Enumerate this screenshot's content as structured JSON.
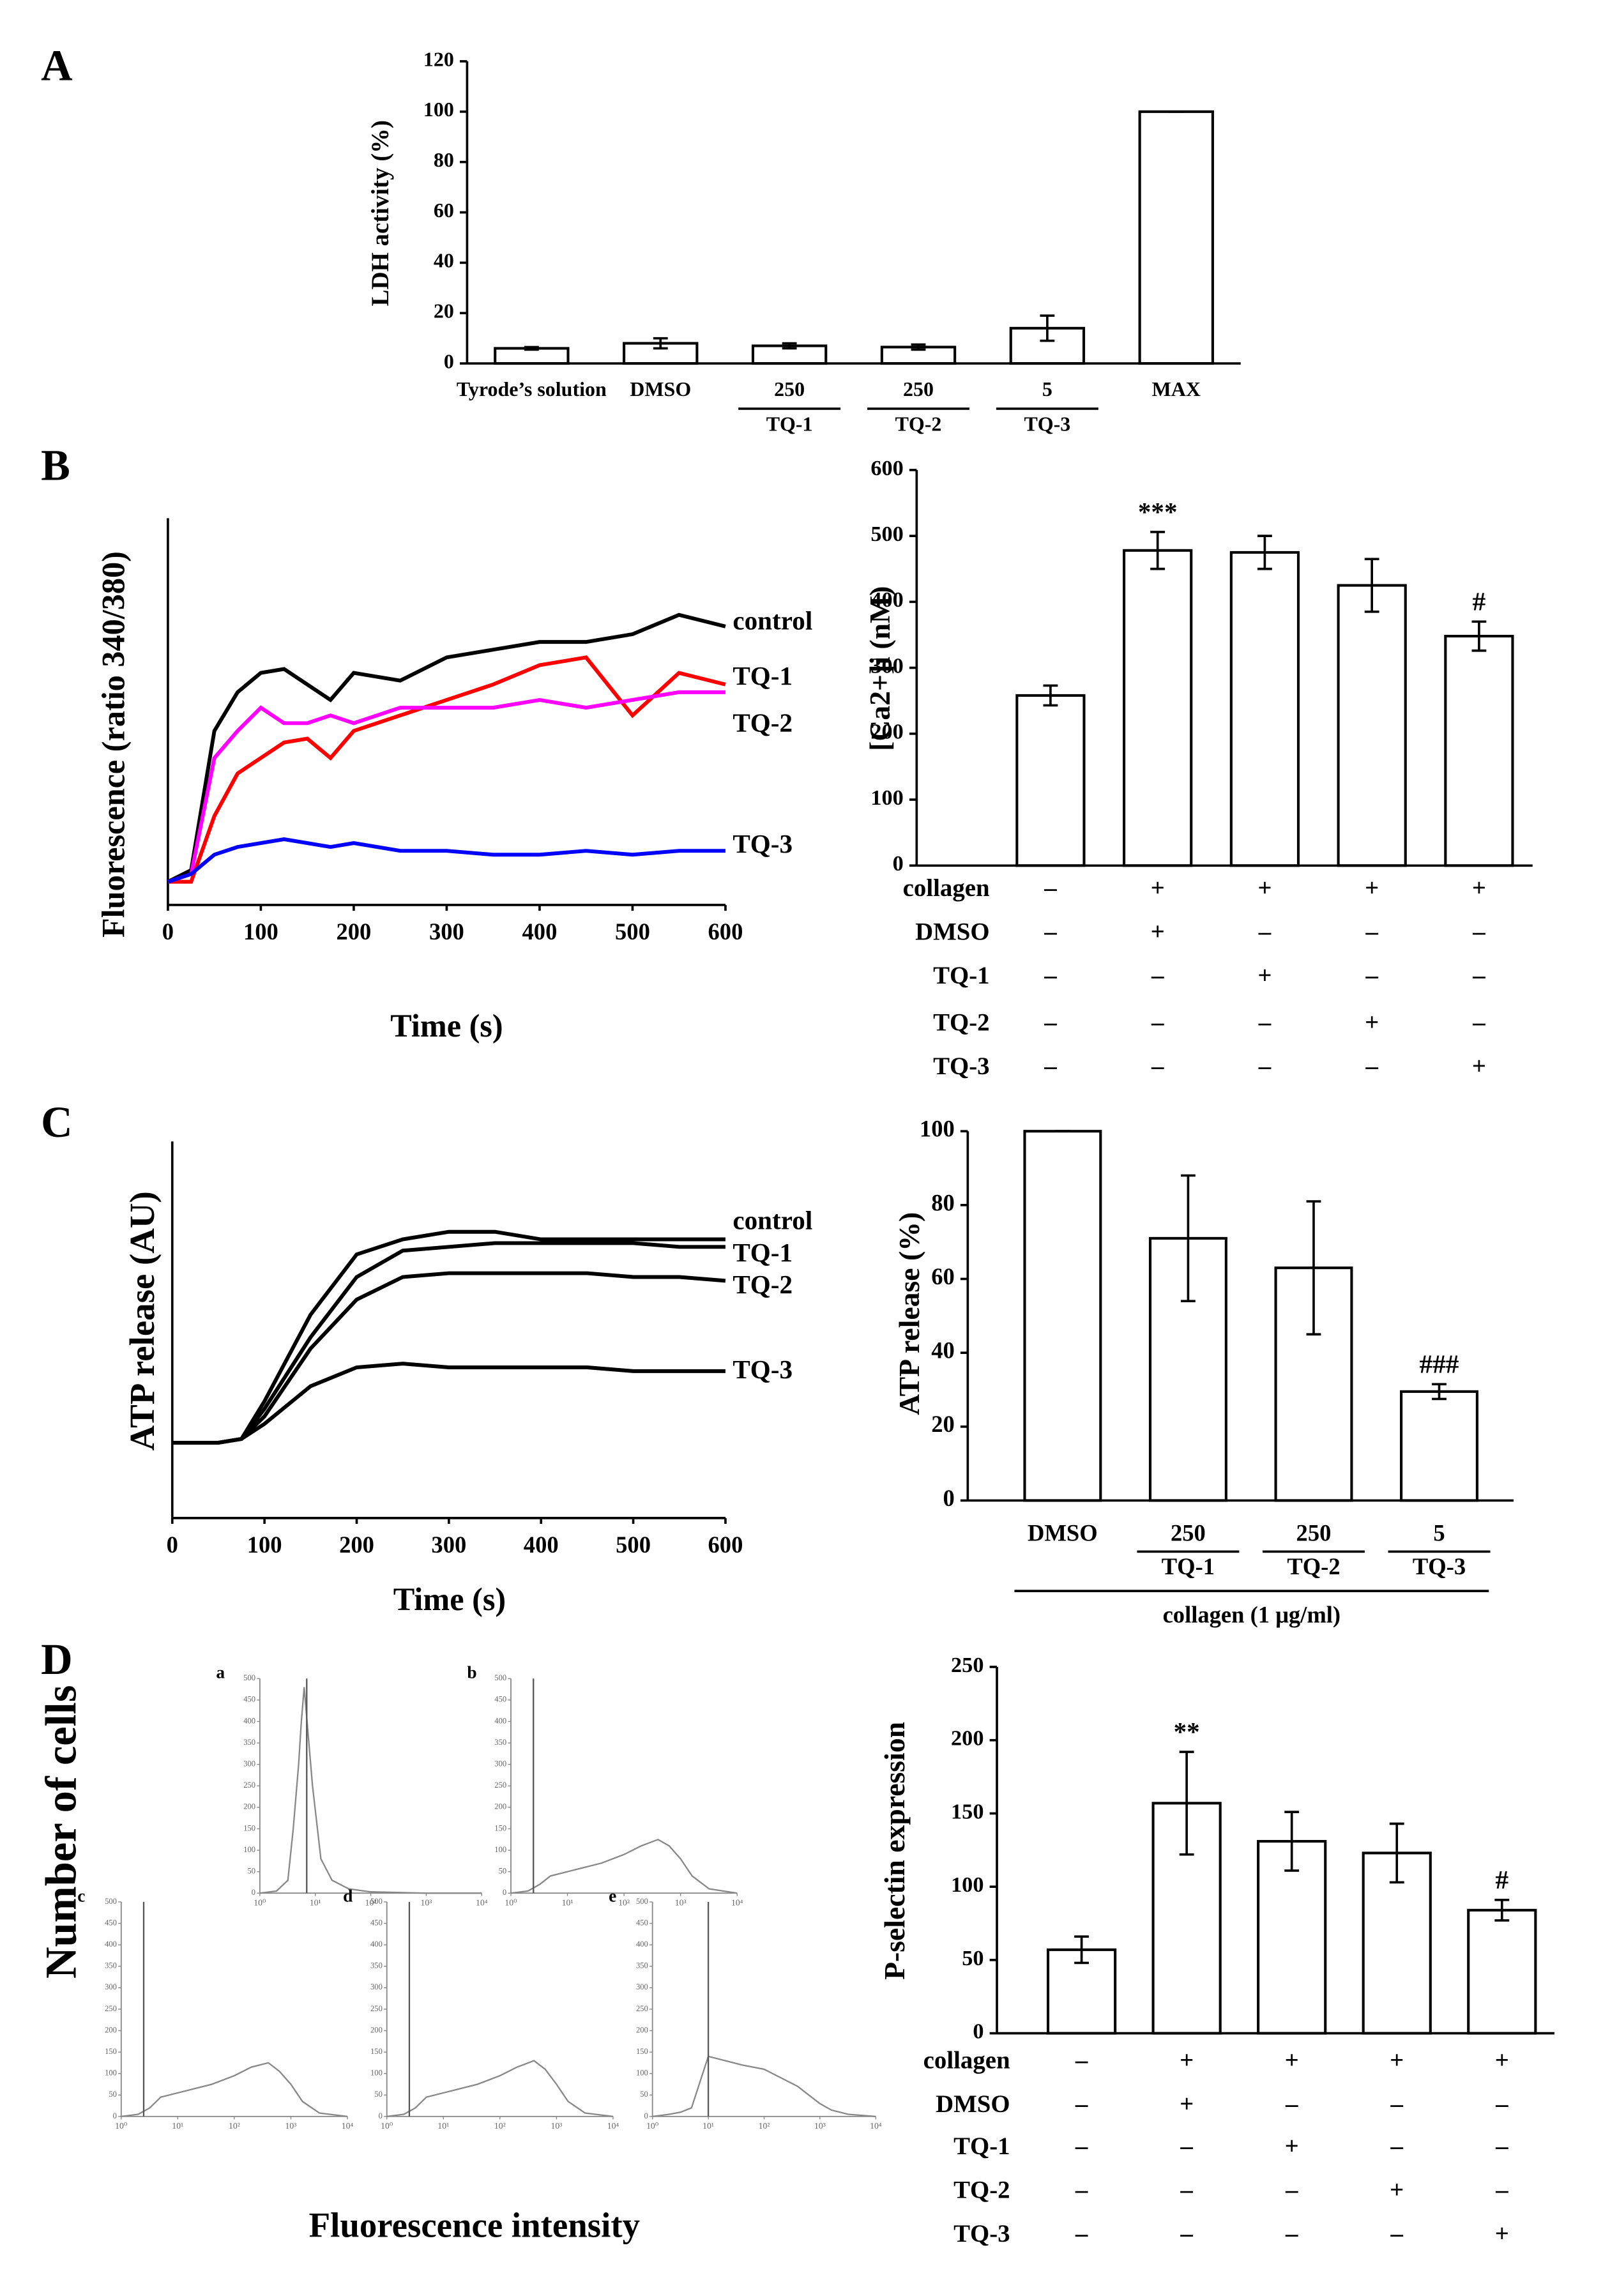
{
  "chart_data": [
    {
      "type": "bar",
      "panel": "A",
      "ylabel": "LDH activity (%)",
      "categories": [
        "Tyrode’s solution",
        "DMSO",
        "250",
        "250",
        "5",
        "MAX"
      ],
      "sublabels": [
        null,
        null,
        "TQ-1",
        "TQ-2",
        "TQ-3",
        null
      ],
      "values": [
        6,
        8,
        7,
        6.5,
        14,
        100
      ],
      "errors": [
        0.5,
        2,
        1,
        1,
        5,
        0
      ],
      "ylim": [
        0,
        120
      ],
      "yticks": [
        0,
        20,
        40,
        60,
        80,
        100,
        120
      ],
      "color": "#ffffff"
    },
    {
      "type": "line",
      "panel": "B",
      "ylabel": "Fluorescence (ratio 340/380)",
      "xlabel": "Time (s)",
      "x": [
        0,
        25,
        50,
        75,
        100,
        125,
        150,
        175,
        200,
        250,
        300,
        350,
        400,
        450,
        500,
        550,
        600
      ],
      "xlim": [
        0,
        600
      ],
      "xticks": [
        0,
        100,
        200,
        300,
        400,
        500,
        600
      ],
      "ylim": [
        0,
        100
      ],
      "series": [
        {
          "name": "control",
          "color": "#000000",
          "values": [
            6,
            9,
            45,
            55,
            60,
            61,
            57,
            53,
            60,
            58,
            64,
            66,
            68,
            68,
            70,
            75,
            72
          ]
        },
        {
          "name": "TQ-1",
          "color": "#ff0000",
          "values": [
            6,
            6,
            23,
            34,
            38,
            42,
            43,
            38,
            45,
            49,
            53,
            57,
            62,
            64,
            49,
            60,
            57
          ]
        },
        {
          "name": "TQ-2",
          "color": "#ff00ff",
          "values": [
            6,
            8,
            38,
            45,
            51,
            47,
            47,
            49,
            47,
            51,
            51,
            51,
            53,
            51,
            53,
            55,
            55
          ]
        },
        {
          "name": "TQ-3",
          "color": "#0000ff",
          "values": [
            6,
            8,
            13,
            15,
            16,
            17,
            16,
            15,
            16,
            14,
            14,
            13,
            13,
            14,
            13,
            14,
            14
          ]
        }
      ]
    },
    {
      "type": "bar",
      "ylabel": "[Ca2+]i (nM)",
      "values": [
        258,
        478,
        475,
        425,
        348
      ],
      "errors": [
        15,
        28,
        25,
        40,
        22
      ],
      "ylim": [
        0,
        600
      ],
      "yticks": [
        0,
        100,
        200,
        300,
        400,
        500,
        600
      ],
      "color": "#ffffff",
      "annotations": [
        {
          "index": 1,
          "text": "***"
        },
        {
          "index": 4,
          "text": "#"
        }
      ],
      "conditions": [
        {
          "name": "collagen",
          "values": [
            "–",
            "+",
            "+",
            "+",
            "+"
          ]
        },
        {
          "name": "DMSO",
          "values": [
            "–",
            "+",
            "–",
            "–",
            "–"
          ]
        },
        {
          "name": "TQ-1",
          "values": [
            "–",
            "–",
            "+",
            "–",
            "–"
          ]
        },
        {
          "name": "TQ-2",
          "values": [
            "–",
            "–",
            "–",
            "+",
            "–"
          ]
        },
        {
          "name": "TQ-3",
          "values": [
            "–",
            "–",
            "–",
            "–",
            "+"
          ]
        }
      ]
    },
    {
      "type": "line",
      "panel": "C",
      "ylabel": "ATP release (AU)",
      "xlabel": "Time (s)",
      "x": [
        0,
        50,
        75,
        100,
        150,
        200,
        250,
        300,
        350,
        400,
        450,
        500,
        550,
        600
      ],
      "xlim": [
        0,
        600
      ],
      "xticks": [
        0,
        100,
        200,
        300,
        400,
        500,
        600
      ],
      "ylim": [
        0,
        100
      ],
      "series": [
        {
          "name": "control",
          "color": "#000000",
          "values": [
            20,
            20,
            21,
            31,
            54,
            70,
            74,
            76,
            76,
            74,
            74,
            74,
            74,
            74
          ]
        },
        {
          "name": "TQ-1",
          "color": "#000000",
          "values": [
            20,
            20,
            21,
            29,
            48,
            64,
            71,
            72,
            73,
            73,
            73,
            73,
            72,
            72
          ]
        },
        {
          "name": "TQ-2",
          "color": "#000000",
          "values": [
            20,
            20,
            21,
            27,
            45,
            58,
            64,
            65,
            65,
            65,
            65,
            64,
            64,
            63
          ]
        },
        {
          "name": "TQ-3",
          "color": "#000000",
          "values": [
            20,
            20,
            21,
            25,
            35,
            40,
            41,
            40,
            40,
            40,
            40,
            39,
            39,
            39
          ]
        }
      ]
    },
    {
      "type": "bar",
      "ylabel": "ATP release (%)",
      "categories": [
        "DMSO",
        "250",
        "250",
        "5"
      ],
      "sublabels": [
        null,
        "TQ-1",
        "TQ-2",
        "TQ-3"
      ],
      "group": "collagen (1 μg/ml)",
      "values": [
        100,
        71,
        63,
        29.5
      ],
      "errors": [
        0,
        17,
        18,
        2
      ],
      "ylim": [
        0,
        100
      ],
      "yticks": [
        0,
        20,
        40,
        60,
        80,
        100
      ],
      "color": "#ffffff",
      "annotations": [
        {
          "index": 3,
          "text": "###"
        }
      ]
    },
    {
      "type": "flow",
      "panel": "D",
      "ylabel": "Number of cells",
      "xlabel": "Fluorescence intensity",
      "log_x": true,
      "xlim": [
        1,
        10000
      ],
      "xticks": [
        {
          "value": 1,
          "label": "10⁰"
        },
        {
          "value": 10,
          "label": "10¹"
        },
        {
          "value": 100,
          "label": "10²"
        },
        {
          "value": 1000,
          "label": "10³"
        },
        {
          "value": 10000,
          "label": "10⁴"
        }
      ],
      "ylim": [
        0,
        500
      ],
      "yticks": [
        0,
        50,
        100,
        150,
        200,
        250,
        300,
        350,
        400,
        450,
        500
      ],
      "panels": [
        {
          "label": "a",
          "x": [
            1,
            2,
            3.2,
            4,
            5,
            5.6,
            6.3,
            7.1,
            8.9,
            12.6,
            20,
            40,
            100,
            1000,
            10000
          ],
          "counts": [
            0,
            5,
            30,
            150,
            300,
            400,
            480,
            400,
            250,
            80,
            30,
            10,
            3,
            0,
            0
          ],
          "gate": 7
        },
        {
          "label": "b",
          "x": [
            1,
            2,
            3.2,
            5,
            10,
            20,
            40,
            100,
            200,
            400,
            630,
            1000,
            1600,
            3200,
            10000
          ],
          "counts": [
            0,
            5,
            20,
            40,
            50,
            60,
            70,
            90,
            110,
            125,
            110,
            80,
            40,
            10,
            0
          ],
          "gate": 2.5
        },
        {
          "label": "c",
          "x": [
            1,
            2,
            3.2,
            5,
            10,
            20,
            40,
            100,
            200,
            400,
            630,
            1000,
            1600,
            3200,
            10000
          ],
          "counts": [
            0,
            5,
            20,
            45,
            55,
            65,
            75,
            95,
            115,
            125,
            105,
            75,
            35,
            8,
            0
          ],
          "gate": 2.5
        },
        {
          "label": "d",
          "x": [
            1,
            2,
            3.2,
            5,
            10,
            20,
            40,
            100,
            200,
            400,
            630,
            1000,
            1600,
            3200,
            10000
          ],
          "counts": [
            0,
            5,
            20,
            45,
            55,
            65,
            75,
            95,
            115,
            130,
            110,
            75,
            35,
            8,
            0
          ],
          "gate": 2.5
        },
        {
          "label": "e",
          "x": [
            1,
            2,
            3.2,
            5,
            10,
            20,
            40,
            100,
            200,
            400,
            630,
            1000,
            1600,
            3200,
            10000
          ],
          "counts": [
            0,
            5,
            10,
            20,
            140,
            130,
            120,
            110,
            90,
            70,
            50,
            30,
            15,
            5,
            0
          ],
          "gate": 10
        }
      ]
    },
    {
      "type": "bar",
      "ylabel": "P-selectin expression",
      "values": [
        57,
        157,
        131,
        123,
        84
      ],
      "errors": [
        9,
        35,
        20,
        20,
        7
      ],
      "ylim": [
        0,
        250
      ],
      "yticks": [
        0,
        50,
        100,
        150,
        200,
        250
      ],
      "color": "#ffffff",
      "annotations": [
        {
          "index": 1,
          "text": "**"
        },
        {
          "index": 4,
          "text": "#"
        }
      ],
      "conditions": [
        {
          "name": "collagen",
          "values": [
            "–",
            "+",
            "+",
            "+",
            "+"
          ]
        },
        {
          "name": "DMSO",
          "values": [
            "–",
            "+",
            "–",
            "–",
            "–"
          ]
        },
        {
          "name": "TQ-1",
          "values": [
            "–",
            "–",
            "+",
            "–",
            "–"
          ]
        },
        {
          "name": "TQ-2",
          "values": [
            "–",
            "–",
            "–",
            "+",
            "–"
          ]
        },
        {
          "name": "TQ-3",
          "values": [
            "–",
            "–",
            "–",
            "–",
            "+"
          ]
        }
      ]
    }
  ]
}
